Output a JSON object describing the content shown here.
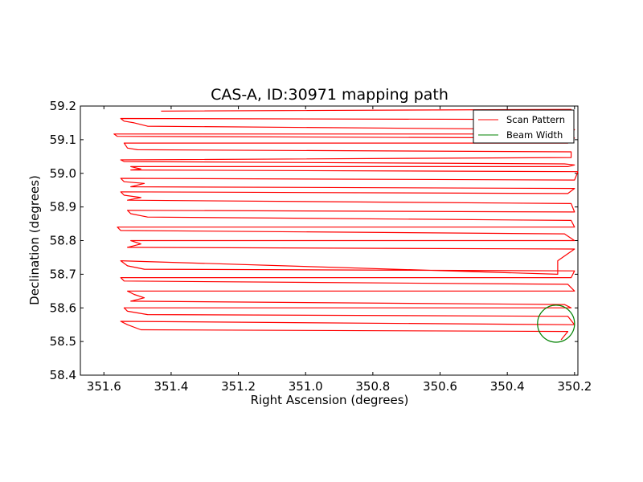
{
  "chart_data": {
    "type": "line",
    "title": "CAS-A, ID:30971 mapping path",
    "xlabel": "Right Ascension (degrees)",
    "ylabel": "Declination (degrees)",
    "xlim": [
      351.67,
      350.19
    ],
    "ylim": [
      58.4,
      59.2
    ],
    "x_inverted": true,
    "xticks": [
      351.6,
      351.4,
      351.2,
      351.0,
      350.8,
      350.6,
      350.4,
      350.2
    ],
    "xtick_labels": [
      "351.6",
      "351.4",
      "351.2",
      "351.0",
      "350.8",
      "350.6",
      "350.4",
      "350.2"
    ],
    "yticks": [
      58.4,
      58.5,
      58.6,
      58.7,
      58.8,
      58.9,
      59.0,
      59.1,
      59.2
    ],
    "ytick_labels": [
      "58.4",
      "58.5",
      "58.6",
      "58.7",
      "58.8",
      "58.9",
      "59.0",
      "59.1",
      "59.2"
    ],
    "grid": false,
    "legend_position": "top-right",
    "series": [
      {
        "name": "Scan Pattern",
        "color": "#ff0000",
        "ra": [
          351.43,
          350.21,
          350.22,
          351.55,
          351.54,
          351.51,
          351.47,
          350.2,
          350.21,
          351.57,
          351.56,
          350.2,
          350.22,
          351.54,
          351.53,
          351.5,
          350.21,
          350.21,
          351.55,
          351.54,
          350.23,
          350.2,
          350.22,
          351.52,
          351.49,
          351.52,
          350.19,
          350.2,
          351.55,
          351.54,
          351.48,
          351.52,
          350.2,
          350.22,
          351.55,
          351.54,
          351.49,
          351.53,
          350.21,
          350.2,
          351.53,
          351.52,
          351.47,
          350.21,
          350.2,
          351.56,
          351.55,
          350.23,
          350.2,
          351.52,
          351.49,
          351.53,
          350.2,
          350.25,
          350.25,
          351.55,
          351.53,
          351.48,
          350.2,
          350.21,
          351.55,
          351.54,
          350.22,
          350.2,
          351.53,
          351.51,
          351.48,
          351.52,
          350.23,
          350.21,
          351.54,
          351.53,
          351.47,
          350.22,
          350.2,
          351.55,
          351.53,
          351.49,
          350.22,
          350.24
        ],
        "dec": [
          59.185,
          59.19,
          59.16,
          59.163,
          59.155,
          59.15,
          59.14,
          59.13,
          59.117,
          59.117,
          59.11,
          59.105,
          59.09,
          59.09,
          59.075,
          59.07,
          59.064,
          59.047,
          59.04,
          59.035,
          59.028,
          59.025,
          59.02,
          59.02,
          59.013,
          59.01,
          59.005,
          58.98,
          58.985,
          58.975,
          58.97,
          58.96,
          58.955,
          58.94,
          58.945,
          58.935,
          58.928,
          58.92,
          58.91,
          58.885,
          58.89,
          58.88,
          58.87,
          58.86,
          58.84,
          58.84,
          58.83,
          58.82,
          58.8,
          58.8,
          58.79,
          58.78,
          58.775,
          58.74,
          58.7,
          58.74,
          58.725,
          58.715,
          58.71,
          58.69,
          58.69,
          58.68,
          58.67,
          58.65,
          58.65,
          58.64,
          58.63,
          58.62,
          58.61,
          58.6,
          58.6,
          58.59,
          58.58,
          58.575,
          58.55,
          58.56,
          58.55,
          58.535,
          58.53,
          58.505
        ]
      },
      {
        "name": "Beam Width",
        "color": "#008000",
        "shape": "circle",
        "center_ra": 350.255,
        "center_dec": 58.553,
        "radius_dec": 0.055
      }
    ]
  }
}
